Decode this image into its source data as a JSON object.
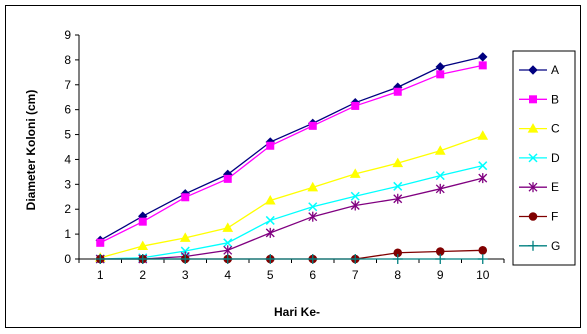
{
  "chart_data": {
    "type": "line",
    "title": "",
    "xlabel": "Hari Ke-",
    "ylabel": "Diameter Koloni (cm)",
    "x": [
      1,
      2,
      3,
      4,
      5,
      6,
      7,
      8,
      9,
      10
    ],
    "x_tick_labels": [
      "1",
      "2",
      "3",
      "4",
      "5",
      "6",
      "7",
      "8",
      "9",
      "10"
    ],
    "y_tick_labels": [
      "0",
      "1",
      "2",
      "3",
      "4",
      "5",
      "6",
      "7",
      "8",
      "9"
    ],
    "ylim": [
      0,
      9
    ],
    "grid": false,
    "legend": "right",
    "series": [
      {
        "name": "A",
        "color": "#000080",
        "marker": "diamond",
        "values": [
          0.75,
          1.72,
          2.62,
          3.4,
          4.7,
          5.45,
          6.28,
          6.9,
          7.72,
          8.12
        ]
      },
      {
        "name": "B",
        "color": "#FF00FF",
        "marker": "square",
        "values": [
          0.65,
          1.5,
          2.48,
          3.22,
          4.55,
          5.35,
          6.15,
          6.72,
          7.42,
          7.78
        ]
      },
      {
        "name": "C",
        "color": "#FFFF00",
        "marker": "triangle",
        "values": [
          0.05,
          0.52,
          0.85,
          1.25,
          2.35,
          2.88,
          3.42,
          3.85,
          4.35,
          4.95
        ]
      },
      {
        "name": "D",
        "color": "#00FFFF",
        "marker": "x",
        "values": [
          0,
          0.05,
          0.32,
          0.65,
          1.55,
          2.1,
          2.52,
          2.92,
          3.35,
          3.75
        ]
      },
      {
        "name": "E",
        "color": "#800080",
        "marker": "star",
        "values": [
          0,
          0,
          0.1,
          0.35,
          1.05,
          1.7,
          2.15,
          2.42,
          2.82,
          3.25
        ]
      },
      {
        "name": "F",
        "color": "#800000",
        "marker": "circle",
        "values": [
          0,
          0,
          0,
          0,
          0,
          0,
          0,
          0.25,
          0.3,
          0.35
        ]
      },
      {
        "name": "G",
        "color": "#008080",
        "marker": "plus",
        "values": [
          0,
          0,
          0,
          0,
          0,
          0,
          0,
          0,
          0,
          0
        ]
      }
    ]
  }
}
